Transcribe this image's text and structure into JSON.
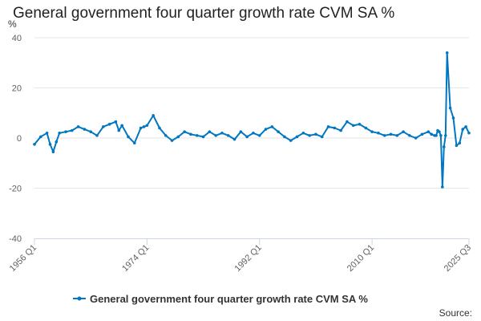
{
  "chart_data": {
    "type": "line",
    "title": "General government four quarter growth rate CVM SA %",
    "xlabel": "",
    "ylabel": "%",
    "ylim": [
      -40,
      40
    ],
    "yticks": [
      40,
      20,
      0,
      -20,
      -40
    ],
    "x_start": "1956 Q1",
    "x_end": "2025 Q3",
    "xticks": [
      "1956 Q1",
      "1974 Q1",
      "1992 Q1",
      "2010 Q1",
      "2025 Q3"
    ],
    "grid": true,
    "legend_position": "bottom",
    "series": [
      {
        "name": "General government four quarter growth rate CVM SA %",
        "color": "#0077c0",
        "x": [
          "1956 Q1",
          "1957 Q1",
          "1958 Q1",
          "1958 Q3",
          "1959 Q1",
          "1959 Q3",
          "1960 Q1",
          "1961 Q1",
          "1962 Q1",
          "1963 Q1",
          "1964 Q1",
          "1965 Q1",
          "1966 Q1",
          "1967 Q1",
          "1968 Q1",
          "1969 Q1",
          "1969 Q3",
          "1970 Q1",
          "1971 Q1",
          "1972 Q1",
          "1973 Q1",
          "1973 Q3",
          "1974 Q1",
          "1975 Q1",
          "1976 Q1",
          "1977 Q1",
          "1978 Q1",
          "1979 Q1",
          "1980 Q1",
          "1981 Q1",
          "1982 Q1",
          "1983 Q1",
          "1984 Q1",
          "1985 Q1",
          "1986 Q1",
          "1987 Q1",
          "1988 Q1",
          "1989 Q1",
          "1990 Q1",
          "1991 Q1",
          "1992 Q1",
          "1993 Q1",
          "1994 Q1",
          "1995 Q1",
          "1996 Q1",
          "1997 Q1",
          "1998 Q1",
          "1999 Q1",
          "2000 Q1",
          "2001 Q1",
          "2002 Q1",
          "2003 Q1",
          "2004 Q1",
          "2005 Q1",
          "2006 Q1",
          "2007 Q1",
          "2008 Q1",
          "2009 Q1",
          "2010 Q1",
          "2011 Q1",
          "2012 Q1",
          "2013 Q1",
          "2014 Q1",
          "2015 Q1",
          "2016 Q1",
          "2017 Q1",
          "2018 Q1",
          "2019 Q1",
          "2019 Q3",
          "2020 Q1",
          "2020 Q2",
          "2020 Q3",
          "2020 Q4",
          "2021 Q1",
          "2021 Q2",
          "2021 Q3",
          "2021 Q4",
          "2022 Q1",
          "2022 Q3",
          "2023 Q1",
          "2023 Q3",
          "2024 Q1",
          "2024 Q3",
          "2025 Q1",
          "2025 Q3"
        ],
        "values": [
          -2.5,
          0.5,
          2.0,
          -2.5,
          -5.5,
          -1.5,
          2.0,
          2.5,
          3.0,
          4.5,
          3.5,
          2.5,
          1.0,
          4.5,
          5.5,
          6.5,
          3.0,
          5.0,
          0.5,
          -2.0,
          4.0,
          4.5,
          5.0,
          9.0,
          4.0,
          1.0,
          -1.0,
          0.5,
          2.5,
          1.5,
          1.0,
          0.5,
          2.5,
          1.0,
          2.0,
          1.0,
          -0.5,
          2.5,
          0.5,
          2.0,
          1.0,
          3.5,
          4.5,
          2.5,
          0.5,
          -1.0,
          0.5,
          2.0,
          1.0,
          1.5,
          0.5,
          4.5,
          4.0,
          3.0,
          6.5,
          5.0,
          5.5,
          4.0,
          2.5,
          2.0,
          1.0,
          1.5,
          1.0,
          2.5,
          1.0,
          0.0,
          1.5,
          2.5,
          1.5,
          1.0,
          1.0,
          3.0,
          2.5,
          1.0,
          -19.5,
          -3.5,
          1.0,
          34.0,
          12.0,
          8.0,
          -3.0,
          -2.0,
          3.5,
          4.5,
          2.0
        ]
      }
    ],
    "credit": "Source:"
  }
}
